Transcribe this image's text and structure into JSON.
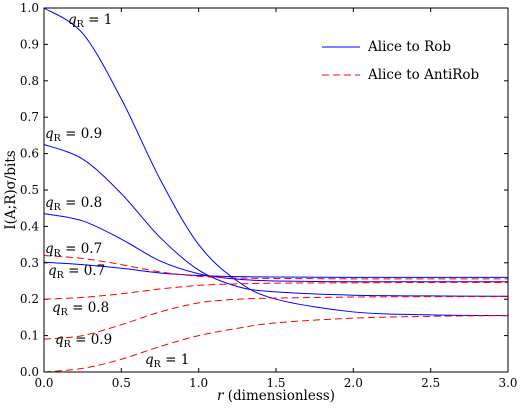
{
  "chart_data": {
    "type": "line",
    "xlabel_var": "r",
    "xlabel_rest": " (dimensionless)",
    "ylabel": "I(A;R)σ/bits",
    "xlim": [
      0,
      3
    ],
    "ylim": [
      0,
      1
    ],
    "x_ticks": [
      "0.0",
      "0.5",
      "1.0",
      "1.5",
      "2.0",
      "2.5",
      "3.0"
    ],
    "y_ticks": [
      "0.0",
      "0.1",
      "0.2",
      "0.3",
      "0.4",
      "0.5",
      "0.6",
      "0.7",
      "0.8",
      "0.9",
      "1.0"
    ],
    "legend": [
      {
        "label": "Alice to Rob",
        "style": "solid",
        "color": "#0000ff"
      },
      {
        "label": "Alice to AntiRob",
        "style": "dashed",
        "color": "#ff0000"
      }
    ],
    "series": [
      {
        "group": "Alice to Rob",
        "q_label": "= 1",
        "x": [
          0,
          0.25,
          0.5,
          0.75,
          1.0,
          1.25,
          1.5,
          2.0,
          2.5,
          3.0
        ],
        "y": [
          1.0,
          0.93,
          0.75,
          0.53,
          0.35,
          0.25,
          0.2,
          0.165,
          0.157,
          0.155
        ]
      },
      {
        "group": "Alice to Rob",
        "q_label": "= 0.9",
        "x": [
          0,
          0.25,
          0.5,
          0.75,
          1.0,
          1.25,
          1.5,
          2.0,
          2.5,
          3.0
        ],
        "y": [
          0.625,
          0.585,
          0.49,
          0.37,
          0.28,
          0.235,
          0.22,
          0.211,
          0.209,
          0.208
        ]
      },
      {
        "group": "Alice to Rob",
        "q_label": "= 0.8",
        "x": [
          0,
          0.25,
          0.5,
          0.75,
          1.0,
          1.25,
          1.5,
          2.0,
          2.5,
          3.0
        ],
        "y": [
          0.435,
          0.415,
          0.365,
          0.305,
          0.27,
          0.255,
          0.25,
          0.248,
          0.248,
          0.248
        ]
      },
      {
        "group": "Alice to Rob",
        "q_label": "= 0.7",
        "x": [
          0,
          0.25,
          0.5,
          0.75,
          1.0,
          1.25,
          1.5,
          2.0,
          2.5,
          3.0
        ],
        "y": [
          0.302,
          0.295,
          0.285,
          0.272,
          0.265,
          0.262,
          0.261,
          0.26,
          0.26,
          0.26
        ]
      },
      {
        "group": "Alice to AntiRob",
        "q_label": "= 0.7",
        "x": [
          0,
          0.25,
          0.5,
          0.75,
          1.0,
          1.25,
          1.5,
          2.0,
          2.5,
          3.0
        ],
        "y": [
          0.32,
          0.312,
          0.295,
          0.275,
          0.263,
          0.258,
          0.257,
          0.256,
          0.256,
          0.256
        ]
      },
      {
        "group": "Alice to AntiRob",
        "q_label": "= 0.8",
        "x": [
          0,
          0.25,
          0.5,
          0.75,
          1.0,
          1.25,
          1.5,
          2.0,
          2.5,
          3.0
        ],
        "y": [
          0.2,
          0.205,
          0.215,
          0.228,
          0.238,
          0.242,
          0.244,
          0.245,
          0.246,
          0.246
        ]
      },
      {
        "group": "Alice to AntiRob",
        "q_label": "= 0.9",
        "x": [
          0,
          0.25,
          0.5,
          0.75,
          1.0,
          1.25,
          1.5,
          2.0,
          2.5,
          3.0
        ],
        "y": [
          0.09,
          0.1,
          0.13,
          0.165,
          0.19,
          0.2,
          0.203,
          0.206,
          0.207,
          0.207
        ]
      },
      {
        "group": "Alice to AntiRob",
        "q_label": "= 1",
        "x": [
          0,
          0.25,
          0.5,
          0.75,
          1.0,
          1.25,
          1.5,
          2.0,
          2.5,
          3.0
        ],
        "y": [
          0.0,
          0.01,
          0.035,
          0.07,
          0.1,
          0.12,
          0.135,
          0.148,
          0.153,
          0.155
        ]
      }
    ]
  }
}
